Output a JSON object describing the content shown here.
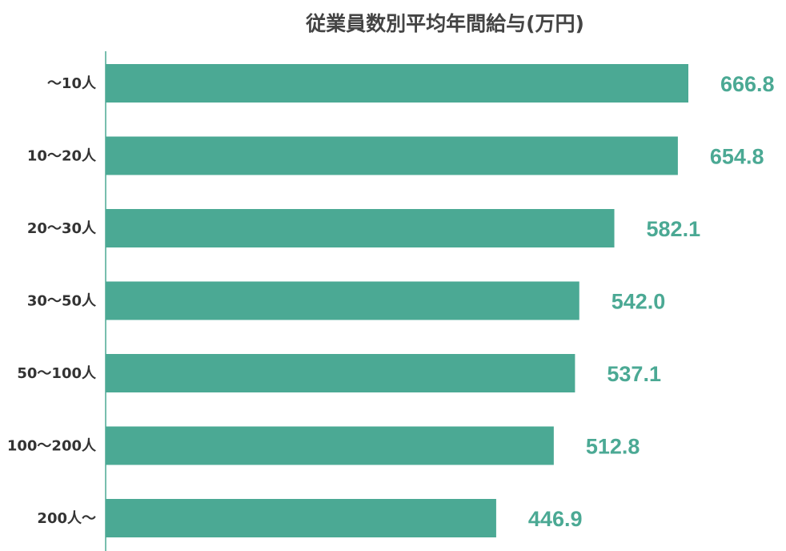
{
  "chart_data": {
    "type": "bar",
    "orientation": "horizontal",
    "title": "従業員数別平均年間給与(万円)",
    "xlabel": "",
    "ylabel": "",
    "categories": [
      "〜10人",
      "10〜20人",
      "20〜30人",
      "30〜50人",
      "50〜100人",
      "100〜200人",
      "200人〜"
    ],
    "values": [
      666.8,
      654.8,
      582.1,
      542.0,
      537.1,
      512.8,
      446.9
    ],
    "value_labels": [
      "666.8",
      "654.8",
      "582.1",
      "542.0",
      "537.1",
      "512.8",
      "446.9"
    ],
    "xlim": [
      0,
      666.8
    ],
    "grid": false,
    "legend": "none",
    "bar_color": "#4ba994",
    "label_color": "#4ba994"
  }
}
